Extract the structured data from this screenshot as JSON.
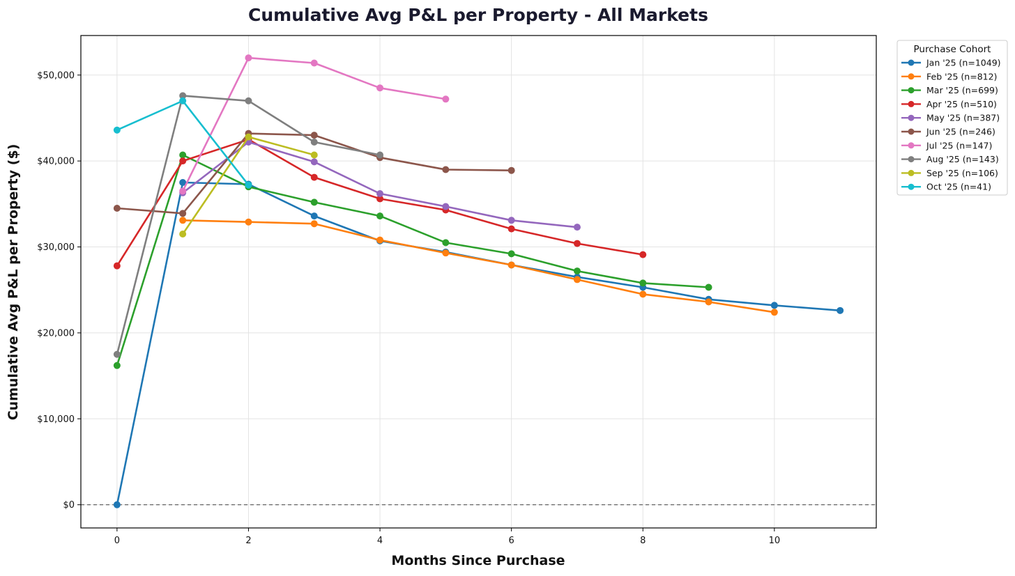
{
  "chart_data": {
    "type": "line",
    "title": "Cumulative Avg P&L per Property - All Markets",
    "xlabel": "Months Since Purchase",
    "ylabel": "Cumulative Avg P&L per Property ($)",
    "xlim": [
      -0.55,
      11.55
    ],
    "ylim": [
      -2700,
      54600
    ],
    "x_ticks": [
      0,
      2,
      4,
      6,
      8,
      10
    ],
    "x_tick_labels": [
      "0",
      "2",
      "4",
      "6",
      "8",
      "10"
    ],
    "y_ticks": [
      0,
      10000,
      20000,
      30000,
      40000,
      50000
    ],
    "y_tick_labels": [
      "$0",
      "$10,000",
      "$20,000",
      "$30,000",
      "$40,000",
      "$50,000"
    ],
    "grid": true,
    "reference_line": {
      "y": 0,
      "style": "dashed"
    },
    "legend": {
      "title": "Purchase Cohort",
      "placement": "outside-top-right"
    },
    "series": [
      {
        "name": "Jan '25 (n=1049)",
        "color": "#1f77b4",
        "x": [
          0,
          1,
          2,
          3,
          4,
          5,
          6,
          7,
          8,
          9,
          10,
          11
        ],
        "values": [
          0,
          37500,
          37300,
          33600,
          30700,
          29400,
          27900,
          26500,
          25300,
          23900,
          23200,
          22600
        ]
      },
      {
        "name": "Feb '25 (n=812)",
        "color": "#ff7f0e",
        "x": [
          1,
          2,
          3,
          4,
          5,
          6,
          7,
          8,
          9,
          10
        ],
        "values": [
          33100,
          32900,
          32700,
          30800,
          29300,
          27900,
          26200,
          24500,
          23600,
          22400
        ]
      },
      {
        "name": "Mar '25 (n=699)",
        "color": "#2ca02c",
        "x": [
          0,
          1,
          2,
          3,
          4,
          5,
          6,
          7,
          8,
          9
        ],
        "values": [
          16200,
          40700,
          37000,
          35200,
          33600,
          30500,
          29200,
          27200,
          25800,
          25300
        ]
      },
      {
        "name": "Apr '25 (n=510)",
        "color": "#d62728",
        "x": [
          0,
          1,
          2,
          3,
          4,
          5,
          6,
          7,
          8
        ],
        "values": [
          27800,
          40000,
          42500,
          38100,
          35600,
          34300,
          32100,
          30400,
          29100
        ]
      },
      {
        "name": "May '25 (n=387)",
        "color": "#9467bd",
        "x": [
          1,
          2,
          3,
          4,
          5,
          6,
          7
        ],
        "values": [
          36300,
          42200,
          39900,
          36200,
          34700,
          33100,
          32300
        ]
      },
      {
        "name": "Jun '25 (n=246)",
        "color": "#8c564b",
        "x": [
          0,
          1,
          2,
          3,
          4,
          5,
          6
        ],
        "values": [
          34500,
          33900,
          43200,
          43000,
          40400,
          39000,
          38900
        ]
      },
      {
        "name": "Jul '25 (n=147)",
        "color": "#e377c2",
        "x": [
          1,
          2,
          3,
          4,
          5
        ],
        "values": [
          36500,
          52000,
          51400,
          48500,
          47200
        ]
      },
      {
        "name": "Aug '25 (n=143)",
        "color": "#7f7f7f",
        "x": [
          0,
          1,
          2,
          3,
          4
        ],
        "values": [
          17500,
          47600,
          47000,
          42200,
          40700
        ]
      },
      {
        "name": "Sep '25 (n=106)",
        "color": "#bcbd22",
        "x": [
          1,
          2,
          3
        ],
        "values": [
          31500,
          42800,
          40700
        ]
      },
      {
        "name": "Oct '25 (n=41)",
        "color": "#17becf",
        "x": [
          0,
          1,
          2
        ],
        "values": [
          43600,
          47000,
          37200
        ]
      }
    ]
  }
}
